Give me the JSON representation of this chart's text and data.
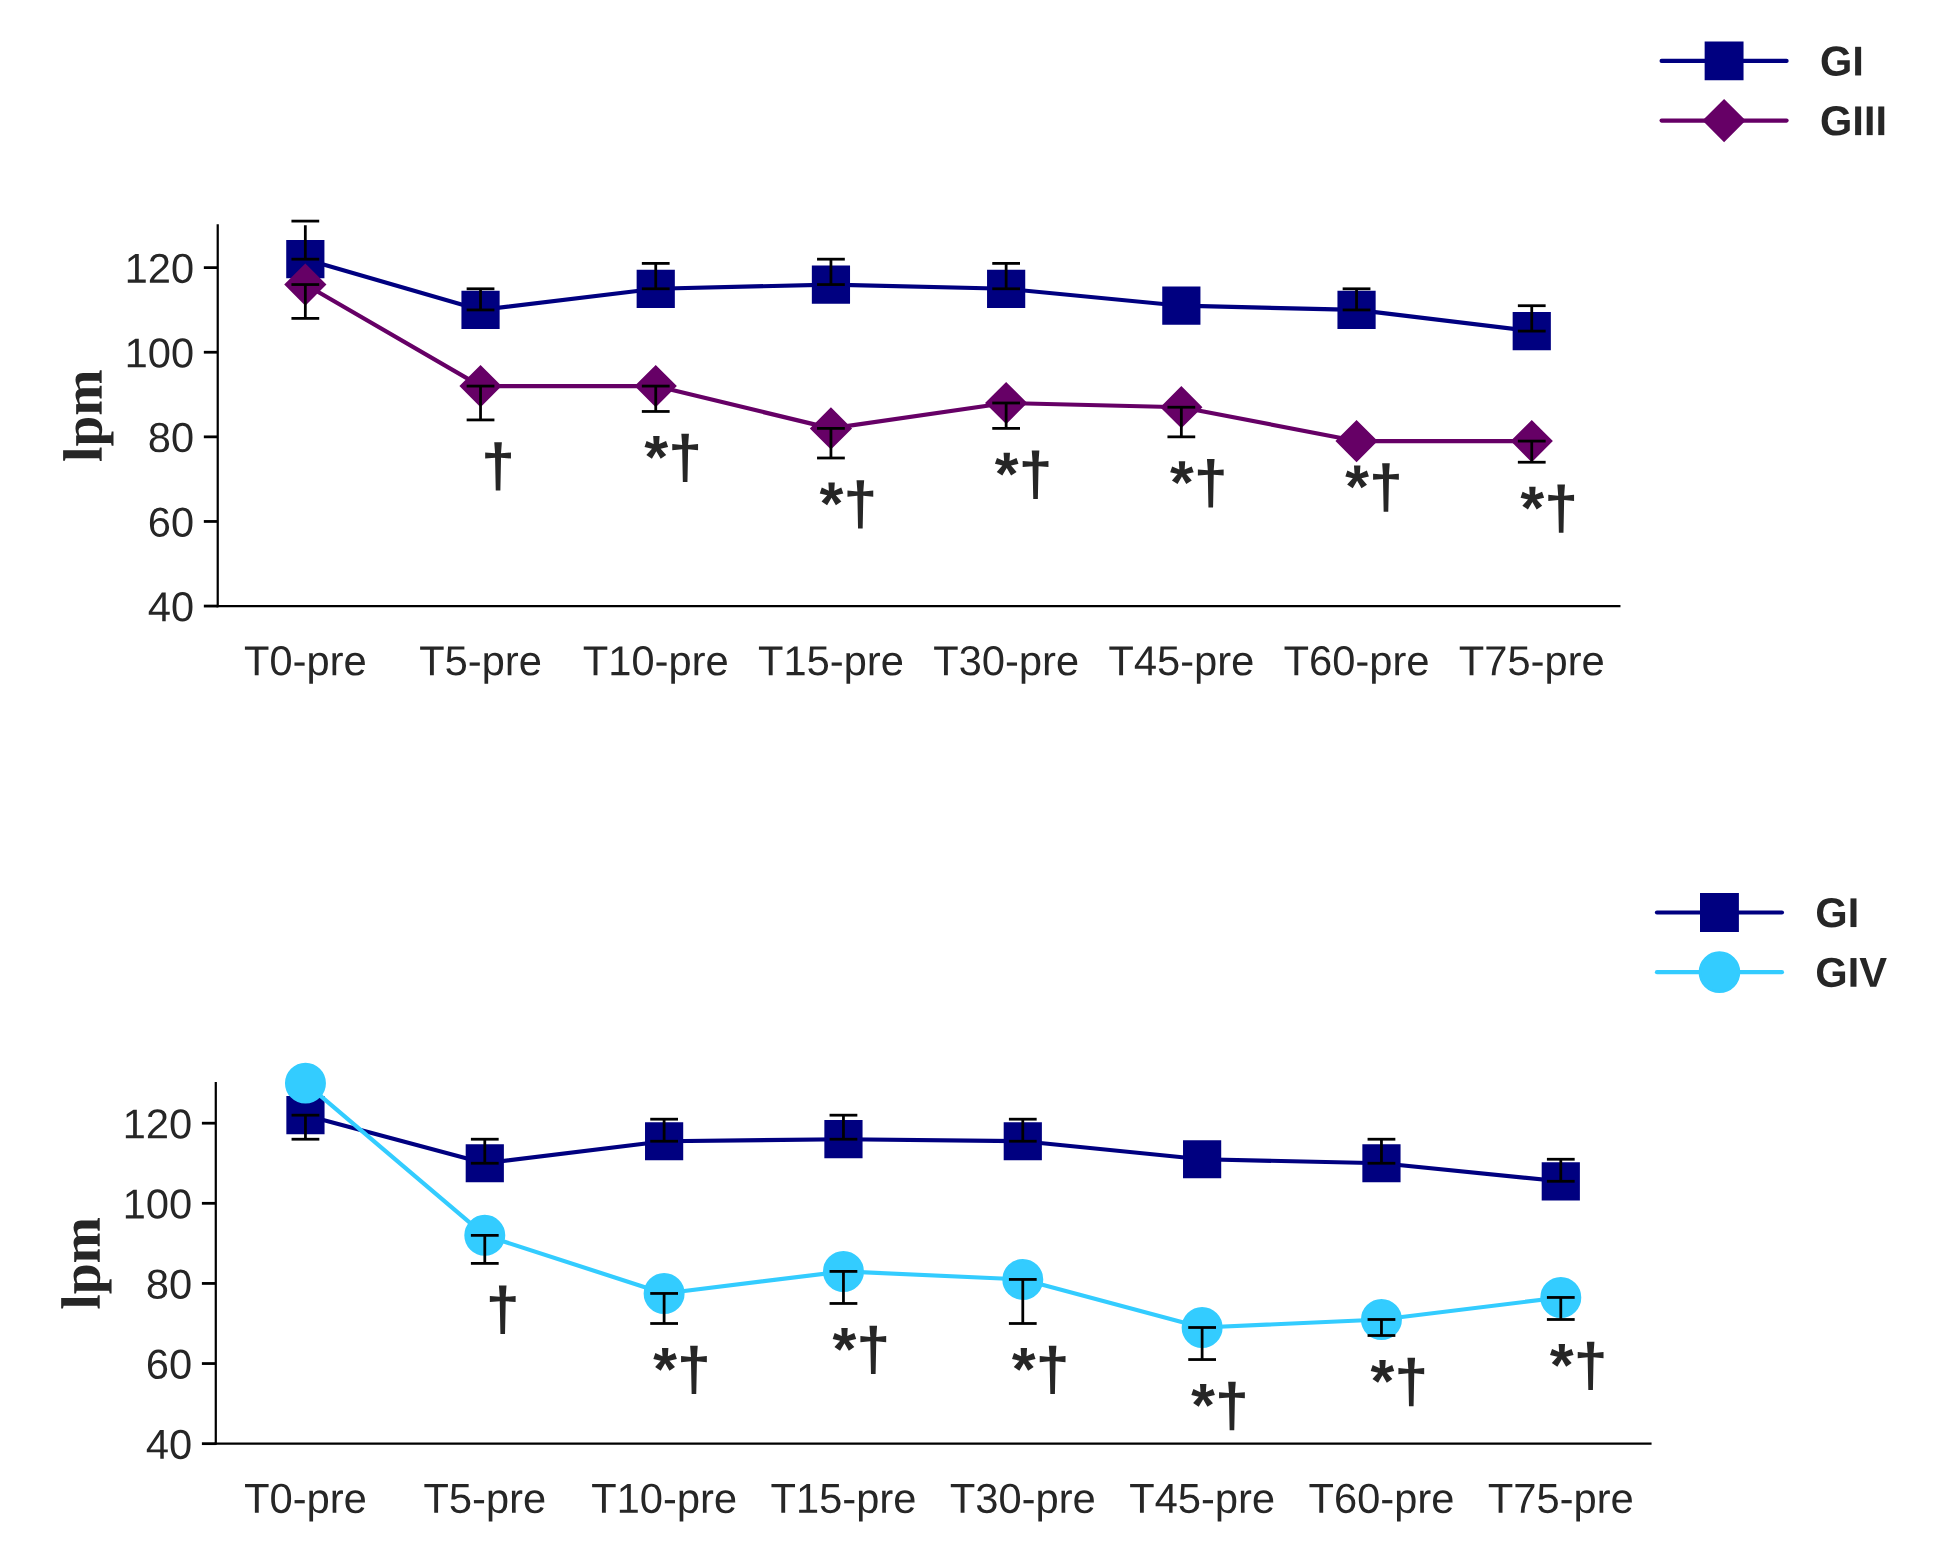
{
  "chart_data": [
    {
      "type": "line",
      "ylabel": "lpm",
      "categories": [
        "T0-pre",
        "T5-pre",
        "T10-pre",
        "T15-pre",
        "T30-pre",
        "T45-pre",
        "T60-pre",
        "T75-pre"
      ],
      "ylim": [
        40,
        130
      ],
      "yticks": [
        40,
        60,
        80,
        100,
        120
      ],
      "legend": "top right",
      "grid": false,
      "series": [
        {
          "name": "GI",
          "color": "#000080",
          "marker": "square",
          "values": [
            122,
            110,
            115,
            116,
            115,
            111,
            110,
            105
          ],
          "errors": [
            [
              122,
              131
            ],
            [
              110,
              115
            ],
            [
              115,
              121
            ],
            [
              116,
              122
            ],
            [
              115,
              121
            ],
            null,
            [
              110,
              115
            ],
            [
              105,
              111
            ]
          ]
        },
        {
          "name": "GIII",
          "color": "#660066",
          "marker": "diamond",
          "values": [
            116,
            92,
            92,
            82,
            88,
            87,
            79,
            79
          ],
          "errors": [
            [
              108,
              116
            ],
            [
              84,
              92
            ],
            [
              86,
              92
            ],
            [
              75,
              82
            ],
            [
              82,
              88
            ],
            [
              80,
              87
            ],
            null,
            [
              74,
              79
            ]
          ]
        }
      ],
      "annotations": [
        "†",
        "*†",
        "*†",
        "*†",
        "*†",
        "*†",
        "*†"
      ]
    },
    {
      "type": "line",
      "ylabel": "lpm",
      "categories": [
        "T0-pre",
        "T5-pre",
        "T10-pre",
        "T15-pre",
        "T30-pre",
        "T45-pre",
        "T60-pre",
        "T75-pre"
      ],
      "ylim": [
        40,
        130
      ],
      "yticks": [
        40,
        60,
        80,
        100,
        120
      ],
      "legend": "top right",
      "grid": false,
      "series": [
        {
          "name": "GI",
          "color": "#000080",
          "marker": "square",
          "values": [
            122,
            110,
            115.5,
            116,
            115.5,
            111,
            110,
            105.5
          ],
          "errors": [
            [
              116,
              122
            ],
            [
              110,
              116
            ],
            [
              115.5,
              121
            ],
            [
              116,
              122
            ],
            [
              115.5,
              121
            ],
            null,
            [
              110,
              116
            ],
            [
              105.5,
              111
            ]
          ]
        },
        {
          "name": "GIV",
          "color": "#33ccff",
          "marker": "circle",
          "values": [
            130,
            92,
            77.5,
            83,
            81,
            69,
            71,
            76.5
          ],
          "errors": [
            null,
            [
              85,
              92
            ],
            [
              70,
              77.5
            ],
            [
              75,
              83
            ],
            [
              70,
              81
            ],
            [
              61,
              69
            ],
            [
              67,
              71
            ],
            [
              71,
              76.5
            ]
          ]
        }
      ],
      "annotations": [
        "†",
        "*†",
        "*†",
        "*†",
        "*†",
        "*†",
        "*†"
      ]
    }
  ]
}
